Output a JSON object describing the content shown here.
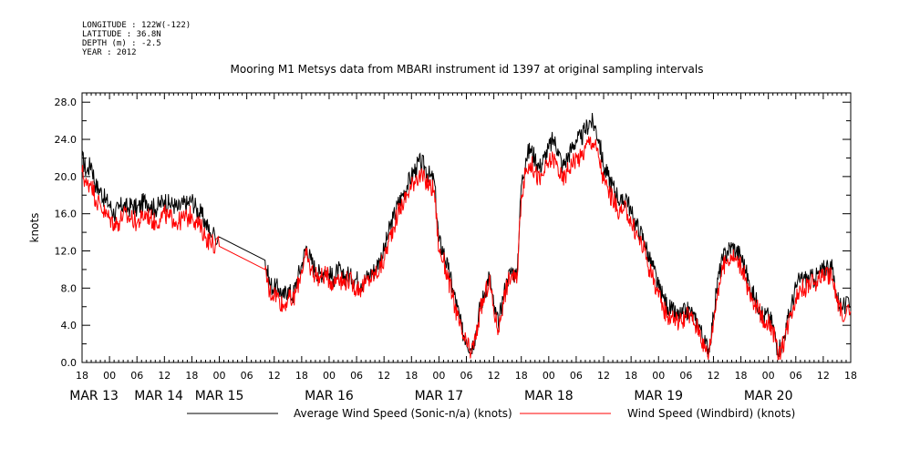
{
  "header": {
    "longitude": "LONGITUDE : 122W(-122)",
    "latitude": "LATITUDE : 36.8N",
    "depth": "DEPTH (m) : -2.5",
    "year": "YEAR : 2012"
  },
  "chart_data": {
    "type": "line",
    "title": "Mooring M1 Metsys data from MBARI instrument id 1397 at original sampling intervals",
    "ylabel": "knots",
    "xlabel": "",
    "ylim": [
      0,
      29
    ],
    "yticks": [
      "0.0",
      "4.0",
      "8.0",
      "12.0",
      "16.0",
      "20.0",
      "24.0",
      "28.0"
    ],
    "x_hour_labels": [
      "18",
      "00",
      "06",
      "12",
      "18",
      "00",
      "06",
      "12",
      "18",
      "00",
      "06",
      "12",
      "18",
      "00",
      "06",
      "12",
      "18",
      "00",
      "06",
      "12",
      "18",
      "00",
      "06",
      "12",
      "18",
      "00",
      "06",
      "12",
      "18"
    ],
    "x_date_labels": [
      "MAR 13",
      "MAR 14",
      "MAR 15",
      "MAR 16",
      "MAR 17",
      "MAR 18",
      "MAR 19",
      "MAR 20"
    ],
    "x_units": "hours since 2012-03-12 18:00",
    "x_range": [
      0,
      168
    ],
    "legend_position": "bottom",
    "grid": false,
    "series": [
      {
        "name": "Average Wind Speed (Sonic-n/a) (knots)",
        "color": "#000000",
        "points": [
          [
            0,
            22
          ],
          [
            1,
            20.5
          ],
          [
            2,
            21.5
          ],
          [
            3,
            19
          ],
          [
            4,
            18.5
          ],
          [
            5,
            17.5
          ],
          [
            6,
            17
          ],
          [
            7,
            16
          ],
          [
            8,
            16.5
          ],
          [
            9,
            17
          ],
          [
            10,
            16.5
          ],
          [
            11,
            17
          ],
          [
            12,
            16.5
          ],
          [
            13,
            17
          ],
          [
            14,
            17.5
          ],
          [
            15,
            17
          ],
          [
            16,
            16.5
          ],
          [
            17,
            17
          ],
          [
            18,
            17.5
          ],
          [
            19,
            17
          ],
          [
            20,
            17
          ],
          [
            21,
            16.5
          ],
          [
            22,
            17
          ],
          [
            23,
            17
          ],
          [
            24,
            17.5
          ],
          [
            25,
            16.5
          ],
          [
            26,
            16
          ],
          [
            27,
            15
          ],
          [
            28,
            14
          ],
          [
            30,
            13.5
          ],
          [
            40,
            11
          ],
          [
            41,
            8.5
          ],
          [
            42,
            8
          ],
          [
            43,
            8
          ],
          [
            44,
            7
          ],
          [
            45,
            8
          ],
          [
            46,
            7
          ],
          [
            47,
            9
          ],
          [
            48,
            10.5
          ],
          [
            49,
            12.5
          ],
          [
            50,
            11
          ],
          [
            51,
            10
          ],
          [
            52,
            9.5
          ],
          [
            53,
            10
          ],
          [
            54,
            9.5
          ],
          [
            55,
            9
          ],
          [
            56,
            10
          ],
          [
            57,
            9
          ],
          [
            58,
            9.5
          ],
          [
            59,
            9
          ],
          [
            60,
            9
          ],
          [
            61,
            8.5
          ],
          [
            62,
            9
          ],
          [
            63,
            9.5
          ],
          [
            64,
            10
          ],
          [
            65,
            11
          ],
          [
            66,
            12
          ],
          [
            67,
            14
          ],
          [
            68,
            15.5
          ],
          [
            69,
            17
          ],
          [
            70,
            18
          ],
          [
            71,
            19
          ],
          [
            72,
            20
          ],
          [
            73,
            21
          ],
          [
            74,
            21.5
          ],
          [
            75,
            21
          ],
          [
            76,
            20
          ],
          [
            77,
            19.5
          ],
          [
            78,
            13
          ],
          [
            79,
            12
          ],
          [
            80,
            10
          ],
          [
            81,
            8
          ],
          [
            82,
            6
          ],
          [
            83,
            3.5
          ],
          [
            84,
            2.5
          ],
          [
            85,
            1.5
          ],
          [
            86,
            3
          ],
          [
            87,
            6
          ],
          [
            88,
            7.5
          ],
          [
            89,
            9.5
          ],
          [
            90,
            6
          ],
          [
            91,
            4
          ],
          [
            92,
            7
          ],
          [
            93,
            9
          ],
          [
            94,
            10
          ],
          [
            95,
            9
          ],
          [
            96,
            19
          ],
          [
            97,
            22
          ],
          [
            98,
            23
          ],
          [
            99,
            22
          ],
          [
            100,
            21
          ],
          [
            101,
            22
          ],
          [
            102,
            23
          ],
          [
            103,
            24
          ],
          [
            104,
            23
          ],
          [
            105,
            21
          ],
          [
            106,
            22
          ],
          [
            107,
            23
          ],
          [
            108,
            24
          ],
          [
            109,
            24
          ],
          [
            110,
            25
          ],
          [
            111,
            26
          ],
          [
            112,
            25.5
          ],
          [
            113,
            24
          ],
          [
            114,
            21
          ],
          [
            115,
            20
          ],
          [
            116,
            19
          ],
          [
            117,
            18
          ],
          [
            118,
            17
          ],
          [
            119,
            18
          ],
          [
            120,
            16
          ],
          [
            121,
            15
          ],
          [
            122,
            14
          ],
          [
            123,
            13
          ],
          [
            124,
            11
          ],
          [
            125,
            10
          ],
          [
            126,
            8
          ],
          [
            127,
            7
          ],
          [
            128,
            6
          ],
          [
            129,
            5.5
          ],
          [
            130,
            5
          ],
          [
            131,
            5
          ],
          [
            132,
            5.5
          ],
          [
            133,
            5.5
          ],
          [
            134,
            4.5
          ],
          [
            135,
            4
          ],
          [
            136,
            2
          ],
          [
            137,
            1.5
          ],
          [
            138,
            5
          ],
          [
            139,
            9
          ],
          [
            140,
            11
          ],
          [
            141,
            12
          ],
          [
            142,
            12.5
          ],
          [
            143,
            12
          ],
          [
            144,
            11.5
          ],
          [
            145,
            10
          ],
          [
            146,
            8
          ],
          [
            147,
            7
          ],
          [
            148,
            6
          ],
          [
            149,
            5
          ],
          [
            150,
            5
          ],
          [
            151,
            4
          ],
          [
            152,
            1.5
          ],
          [
            153,
            2
          ],
          [
            154,
            4
          ],
          [
            155,
            6
          ],
          [
            156,
            8
          ],
          [
            157,
            9
          ],
          [
            158,
            9
          ],
          [
            159,
            9
          ],
          [
            160,
            9
          ],
          [
            161,
            9.5
          ],
          [
            162,
            10
          ],
          [
            163,
            10.5
          ],
          [
            164,
            10
          ],
          [
            165,
            7
          ],
          [
            166,
            6
          ],
          [
            168,
            6
          ]
        ]
      },
      {
        "name": "Wind Speed (Windbird) (knots)",
        "color": "#ff0000",
        "points": [
          [
            0,
            20.5
          ],
          [
            1,
            19
          ],
          [
            2,
            19.5
          ],
          [
            3,
            17.5
          ],
          [
            4,
            17
          ],
          [
            5,
            16
          ],
          [
            6,
            15.5
          ],
          [
            7,
            15
          ],
          [
            8,
            15
          ],
          [
            9,
            16
          ],
          [
            10,
            15.5
          ],
          [
            11,
            15.5
          ],
          [
            12,
            15
          ],
          [
            13,
            15.5
          ],
          [
            14,
            16
          ],
          [
            15,
            15.5
          ],
          [
            16,
            15
          ],
          [
            17,
            15.5
          ],
          [
            18,
            16
          ],
          [
            19,
            15.5
          ],
          [
            20,
            15.5
          ],
          [
            21,
            15
          ],
          [
            22,
            15.5
          ],
          [
            23,
            15.5
          ],
          [
            24,
            16
          ],
          [
            25,
            15
          ],
          [
            26,
            14.5
          ],
          [
            27,
            13.5
          ],
          [
            28,
            13
          ],
          [
            30,
            12.5
          ],
          [
            40,
            10
          ],
          [
            41,
            7.5
          ],
          [
            42,
            7.5
          ],
          [
            43,
            7
          ],
          [
            44,
            6
          ],
          [
            45,
            7
          ],
          [
            46,
            6.5
          ],
          [
            47,
            8
          ],
          [
            48,
            10
          ],
          [
            49,
            11.5
          ],
          [
            50,
            10
          ],
          [
            51,
            9.5
          ],
          [
            52,
            9
          ],
          [
            53,
            9.5
          ],
          [
            54,
            9
          ],
          [
            55,
            8.5
          ],
          [
            56,
            9.5
          ],
          [
            57,
            8.5
          ],
          [
            58,
            9
          ],
          [
            59,
            8.5
          ],
          [
            60,
            8
          ],
          [
            61,
            8
          ],
          [
            62,
            8.5
          ],
          [
            63,
            9
          ],
          [
            64,
            9.5
          ],
          [
            65,
            10
          ],
          [
            66,
            11
          ],
          [
            67,
            13
          ],
          [
            68,
            14.5
          ],
          [
            69,
            16
          ],
          [
            70,
            17
          ],
          [
            71,
            18
          ],
          [
            72,
            19
          ],
          [
            73,
            20
          ],
          [
            74,
            20
          ],
          [
            75,
            19.5
          ],
          [
            76,
            19
          ],
          [
            77,
            18.5
          ],
          [
            78,
            12
          ],
          [
            79,
            11
          ],
          [
            80,
            9
          ],
          [
            81,
            7
          ],
          [
            82,
            5
          ],
          [
            83,
            3
          ],
          [
            84,
            2
          ],
          [
            85,
            1
          ],
          [
            86,
            2.5
          ],
          [
            87,
            5.5
          ],
          [
            88,
            7
          ],
          [
            89,
            9
          ],
          [
            90,
            5.5
          ],
          [
            91,
            3.5
          ],
          [
            92,
            6.5
          ],
          [
            93,
            8.5
          ],
          [
            94,
            9.5
          ],
          [
            95,
            8.5
          ],
          [
            96,
            18
          ],
          [
            97,
            20.5
          ],
          [
            98,
            21.5
          ],
          [
            99,
            20.5
          ],
          [
            100,
            19.5
          ],
          [
            101,
            20.5
          ],
          [
            102,
            21.5
          ],
          [
            103,
            22
          ],
          [
            104,
            21
          ],
          [
            105,
            19.5
          ],
          [
            106,
            20.5
          ],
          [
            107,
            21.5
          ],
          [
            108,
            22
          ],
          [
            109,
            22
          ],
          [
            110,
            23
          ],
          [
            111,
            24
          ],
          [
            112,
            23.5
          ],
          [
            113,
            22
          ],
          [
            114,
            19.5
          ],
          [
            115,
            18.5
          ],
          [
            116,
            17.5
          ],
          [
            117,
            16.5
          ],
          [
            118,
            16
          ],
          [
            119,
            16.5
          ],
          [
            120,
            15
          ],
          [
            121,
            14
          ],
          [
            122,
            13
          ],
          [
            123,
            12
          ],
          [
            124,
            10
          ],
          [
            125,
            9
          ],
          [
            126,
            7
          ],
          [
            127,
            6
          ],
          [
            128,
            5
          ],
          [
            129,
            5
          ],
          [
            130,
            4.5
          ],
          [
            131,
            4.5
          ],
          [
            132,
            5
          ],
          [
            133,
            5
          ],
          [
            134,
            4
          ],
          [
            135,
            3.5
          ],
          [
            136,
            1.5
          ],
          [
            137,
            1
          ],
          [
            138,
            4.5
          ],
          [
            139,
            8
          ],
          [
            140,
            10
          ],
          [
            141,
            11
          ],
          [
            142,
            11.5
          ],
          [
            143,
            11
          ],
          [
            144,
            10.5
          ],
          [
            145,
            9
          ],
          [
            146,
            7
          ],
          [
            147,
            6
          ],
          [
            148,
            5.5
          ],
          [
            149,
            4.5
          ],
          [
            150,
            4.5
          ],
          [
            151,
            3.5
          ],
          [
            152,
            1
          ],
          [
            153,
            1.5
          ],
          [
            154,
            3.5
          ],
          [
            155,
            5.5
          ],
          [
            156,
            7
          ],
          [
            157,
            8
          ],
          [
            158,
            8
          ],
          [
            159,
            8.5
          ],
          [
            160,
            8.5
          ],
          [
            161,
            9
          ],
          [
            162,
            9.5
          ],
          [
            163,
            9.5
          ],
          [
            164,
            9
          ],
          [
            165,
            6.5
          ],
          [
            166,
            5.5
          ],
          [
            168,
            5.5
          ]
        ]
      }
    ]
  }
}
